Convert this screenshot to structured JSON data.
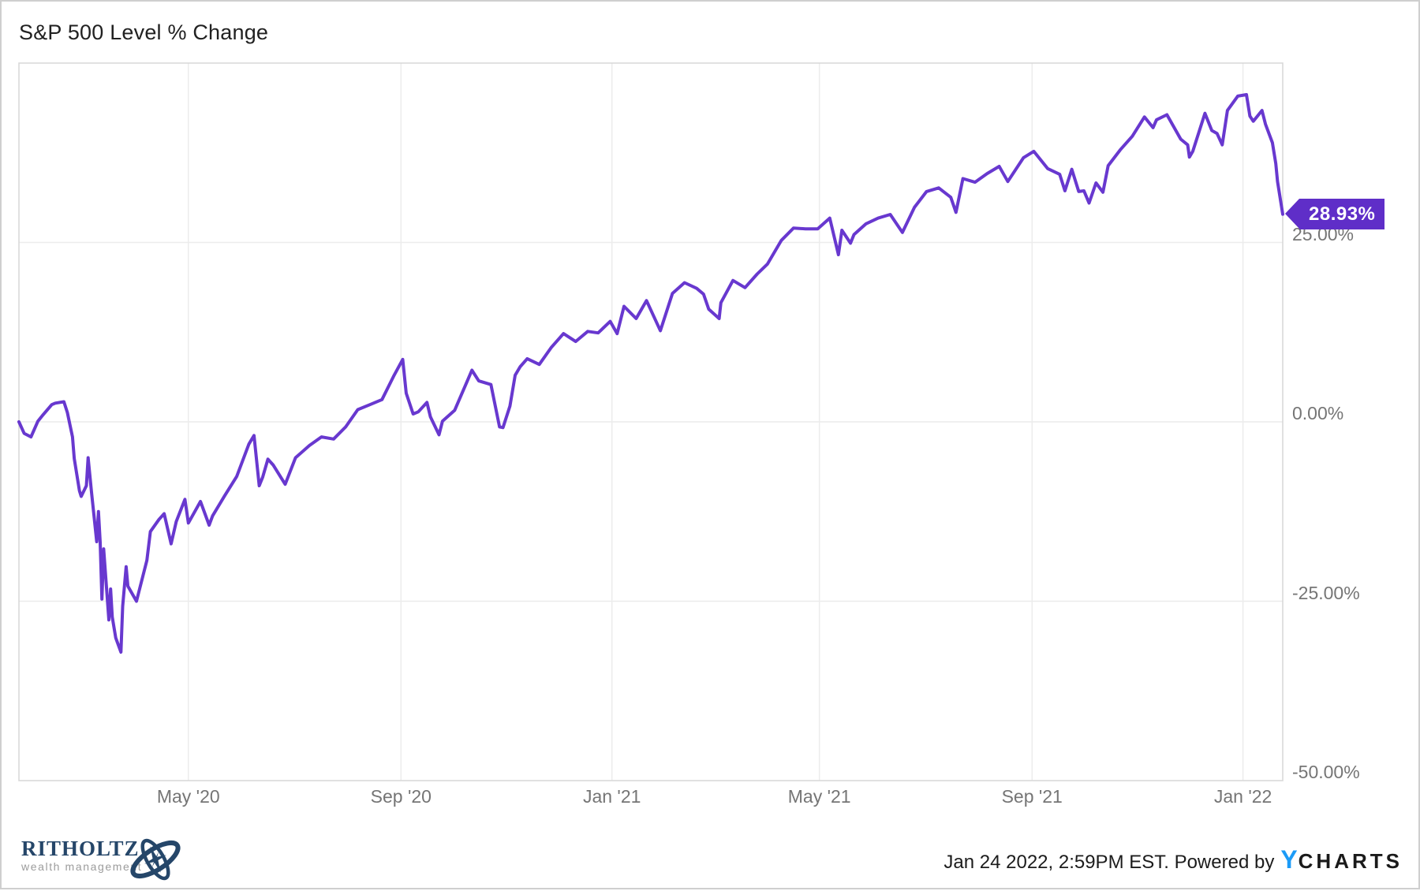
{
  "title": "S&P 500 Level % Change",
  "chart_data": {
    "type": "line",
    "title": "S&P 500 Level % Change",
    "line_color": "#6838CF",
    "grid_color": "#ececec",
    "border_color": "#d7d7d7",
    "axis_label_color": "#757575",
    "x_domain_days": [
      0,
      731
    ],
    "ylim": [
      -50,
      50
    ],
    "grid": true,
    "legend": "none",
    "y_ticks": [
      {
        "value": 25,
        "label": "25.00%"
      },
      {
        "value": 0,
        "label": "0.00%"
      },
      {
        "value": -25,
        "label": "-25.00%"
      },
      {
        "value": -50,
        "label": "-50.00%"
      }
    ],
    "x_ticks": [
      {
        "day": 98,
        "label": "May '20"
      },
      {
        "day": 221,
        "label": "Sep '20"
      },
      {
        "day": 343,
        "label": "Jan '21"
      },
      {
        "day": 463,
        "label": "May '21"
      },
      {
        "day": 586,
        "label": "Sep '21"
      },
      {
        "day": 708,
        "label": "Jan '22"
      }
    ],
    "end_label": {
      "text": "28.93%",
      "color": "#5F2EC8",
      "value": 28.93
    },
    "points": [
      [
        0,
        0
      ],
      [
        3,
        -1.6
      ],
      [
        7,
        -2.1
      ],
      [
        11,
        0.1
      ],
      [
        14,
        1.0
      ],
      [
        19,
        2.4
      ],
      [
        21,
        2.6
      ],
      [
        26,
        2.8
      ],
      [
        28,
        1.3
      ],
      [
        31,
        -2.1
      ],
      [
        32,
        -5.1
      ],
      [
        35,
        -9.6
      ],
      [
        36,
        -10.4
      ],
      [
        39,
        -8.9
      ],
      [
        40,
        -5.0
      ],
      [
        42,
        -9.8
      ],
      [
        45,
        -16.7
      ],
      [
        46,
        -12.5
      ],
      [
        47,
        -16.8
      ],
      [
        48,
        -24.7
      ],
      [
        49,
        -17.7
      ],
      [
        52,
        -27.6
      ],
      [
        53,
        -23.3
      ],
      [
        54,
        -27.2
      ],
      [
        56,
        -30.1
      ],
      [
        59,
        -32.1
      ],
      [
        60,
        -25.7
      ],
      [
        62,
        -20.2
      ],
      [
        63,
        -22.9
      ],
      [
        68,
        -25.0
      ],
      [
        74,
        -19.3
      ],
      [
        76,
        -15.3
      ],
      [
        81,
        -13.6
      ],
      [
        84,
        -12.8
      ],
      [
        88,
        -17.0
      ],
      [
        91,
        -13.9
      ],
      [
        96,
        -10.8
      ],
      [
        98,
        -14.1
      ],
      [
        105,
        -11.1
      ],
      [
        110,
        -14.4
      ],
      [
        112,
        -13.1
      ],
      [
        119,
        -10.3
      ],
      [
        126,
        -7.6
      ],
      [
        133,
        -3.1
      ],
      [
        136,
        -1.9
      ],
      [
        139,
        -8.9
      ],
      [
        141,
        -7.7
      ],
      [
        144,
        -5.2
      ],
      [
        147,
        -6.0
      ],
      [
        154,
        -8.7
      ],
      [
        160,
        -5.0
      ],
      [
        168,
        -3.3
      ],
      [
        175,
        -2.1
      ],
      [
        182,
        -2.4
      ],
      [
        189,
        -0.7
      ],
      [
        196,
        1.7
      ],
      [
        203,
        2.4
      ],
      [
        210,
        3.1
      ],
      [
        217,
        6.5
      ],
      [
        222,
        8.7
      ],
      [
        224,
        4.0
      ],
      [
        228,
        1.1
      ],
      [
        231,
        1.4
      ],
      [
        236,
        2.7
      ],
      [
        238,
        0.7
      ],
      [
        243,
        -1.8
      ],
      [
        245,
        0.1
      ],
      [
        252,
        1.6
      ],
      [
        259,
        5.5
      ],
      [
        262,
        7.2
      ],
      [
        266,
        5.7
      ],
      [
        273,
        5.2
      ],
      [
        278,
        -0.7
      ],
      [
        280,
        -0.8
      ],
      [
        284,
        2.2
      ],
      [
        287,
        6.5
      ],
      [
        290,
        7.7
      ],
      [
        294,
        8.8
      ],
      [
        301,
        8.0
      ],
      [
        308,
        10.4
      ],
      [
        315,
        12.3
      ],
      [
        322,
        11.2
      ],
      [
        329,
        12.6
      ],
      [
        335,
        12.4
      ],
      [
        342,
        14.0
      ],
      [
        346,
        12.3
      ],
      [
        350,
        16.1
      ],
      [
        357,
        14.4
      ],
      [
        363,
        16.9
      ],
      [
        371,
        12.7
      ],
      [
        378,
        17.9
      ],
      [
        385,
        19.4
      ],
      [
        392,
        18.6
      ],
      [
        396,
        17.8
      ],
      [
        399,
        15.7
      ],
      [
        405,
        14.4
      ],
      [
        406,
        16.6
      ],
      [
        413,
        19.7
      ],
      [
        420,
        18.7
      ],
      [
        427,
        20.6
      ],
      [
        433,
        22.0
      ],
      [
        441,
        25.3
      ],
      [
        448,
        27.0
      ],
      [
        455,
        26.9
      ],
      [
        462,
        26.9
      ],
      [
        469,
        28.4
      ],
      [
        474,
        23.3
      ],
      [
        476,
        26.7
      ],
      [
        481,
        24.9
      ],
      [
        483,
        26.1
      ],
      [
        490,
        27.6
      ],
      [
        497,
        28.4
      ],
      [
        504,
        28.9
      ],
      [
        511,
        26.4
      ],
      [
        518,
        29.9
      ],
      [
        525,
        32.1
      ],
      [
        532,
        32.6
      ],
      [
        539,
        31.3
      ],
      [
        542,
        29.2
      ],
      [
        546,
        33.9
      ],
      [
        553,
        33.4
      ],
      [
        560,
        34.6
      ],
      [
        567,
        35.6
      ],
      [
        572,
        33.5
      ],
      [
        581,
        36.8
      ],
      [
        587,
        37.7
      ],
      [
        595,
        35.3
      ],
      [
        602,
        34.5
      ],
      [
        605,
        32.2
      ],
      [
        609,
        35.2
      ],
      [
        613,
        32.1
      ],
      [
        616,
        32.2
      ],
      [
        619,
        30.5
      ],
      [
        623,
        33.3
      ],
      [
        627,
        32.0
      ],
      [
        630,
        35.7
      ],
      [
        637,
        37.9
      ],
      [
        644,
        39.8
      ],
      [
        651,
        42.5
      ],
      [
        656,
        41.0
      ],
      [
        658,
        42.1
      ],
      [
        664,
        42.8
      ],
      [
        672,
        39.4
      ],
      [
        676,
        38.6
      ],
      [
        677,
        36.9
      ],
      [
        679,
        37.7
      ],
      [
        686,
        43.0
      ],
      [
        690,
        40.6
      ],
      [
        693,
        40.2
      ],
      [
        696,
        38.6
      ],
      [
        699,
        43.4
      ],
      [
        705,
        45.4
      ],
      [
        710,
        45.6
      ],
      [
        712,
        42.6
      ],
      [
        714,
        41.9
      ],
      [
        719,
        43.4
      ],
      [
        721,
        41.5
      ],
      [
        725,
        38.9
      ],
      [
        727,
        36.0
      ],
      [
        728,
        33.5
      ],
      [
        731,
        28.93
      ]
    ]
  },
  "footer": {
    "logo": {
      "name": "RITHOLTZ",
      "subtitle": "wealth management",
      "navy": "#254669"
    },
    "attribution": {
      "text": "Jan 24 2022, 2:59PM EST. Powered by",
      "ycharts_y": "Y",
      "ycharts_rest": "CHARTS",
      "ycharts_blue": "#1C9BF7"
    }
  }
}
